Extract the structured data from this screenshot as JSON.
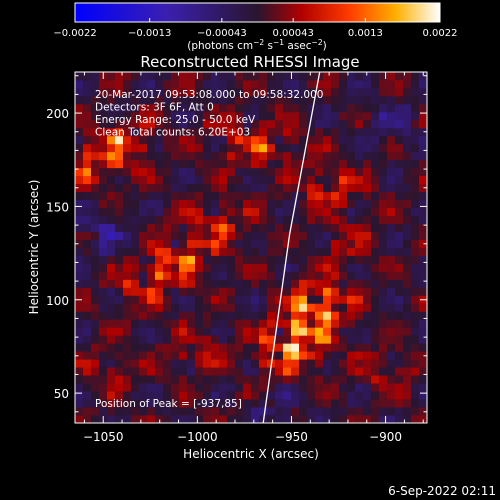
{
  "chart_data": {
    "type": "heatmap",
    "title": "Reconstructed RHESSI Image",
    "xlabel": "Heliocentric X (arcsec)",
    "ylabel": "Heliocentric Y (arcsec)",
    "xlim": [
      -1065,
      -878
    ],
    "ylim": [
      34,
      222
    ],
    "x_ticks": [
      -1050,
      -1000,
      -950,
      -900
    ],
    "x_tick_labels": [
      "−1050",
      "−1000",
      "−950",
      "−900"
    ],
    "y_ticks": [
      50,
      100,
      150,
      200
    ],
    "y_tick_labels": [
      "50",
      "100",
      "150",
      "200"
    ],
    "colorbar": {
      "range": [
        -0.0022,
        0.0022
      ],
      "ticks": [
        -0.0022,
        -0.0013,
        -0.00043,
        0.00043,
        0.0013,
        0.0022
      ],
      "tick_labels": [
        "−0.0022",
        "−0.0013",
        "−0.00043",
        "0.00043",
        "0.0013",
        "0.0022"
      ],
      "unit_parts": [
        "(photons cm",
        "−2",
        " s",
        "−1",
        " asec",
        "−2",
        ")"
      ]
    },
    "info_lines": [
      "20-Mar-2017 09:53:08.000 to 09:58:32.000",
      "Detectors: 3F 6F, Att 0",
      "Energy Range: 25.0 - 50.0 keV",
      "Clean     Total counts: 6.20E+03"
    ],
    "peak_label": "Position of Peak = [-937,85]",
    "peak_position": [
      -937,
      85
    ],
    "blobs": [
      {
        "x": -936,
        "y": 98,
        "value": 0.0022
      },
      {
        "x": -945,
        "y": 80,
        "value": 0.0017
      },
      {
        "x": -955,
        "y": 70,
        "value": 0.0012
      },
      {
        "x": -1010,
        "y": 122,
        "value": 0.0015
      },
      {
        "x": -1028,
        "y": 108,
        "value": 0.0012
      },
      {
        "x": -990,
        "y": 140,
        "value": 0.0011
      },
      {
        "x": -1040,
        "y": 185,
        "value": 0.0013
      },
      {
        "x": -1055,
        "y": 172,
        "value": 0.0011
      },
      {
        "x": -960,
        "y": 182,
        "value": 0.0009
      },
      {
        "x": -930,
        "y": 160,
        "value": 0.0011
      },
      {
        "x": -920,
        "y": 130,
        "value": 0.0007
      },
      {
        "x": -980,
        "y": 185,
        "value": 0.0008
      },
      {
        "x": -1000,
        "y": 72,
        "value": 0.0008
      },
      {
        "x": -1045,
        "y": 62,
        "value": 0.0007
      },
      {
        "x": -900,
        "y": 62,
        "value": 0.0007
      },
      {
        "x": -1050,
        "y": 135,
        "value": -0.0009
      },
      {
        "x": -960,
        "y": 40,
        "value": -0.0006
      },
      {
        "x": -895,
        "y": 195,
        "value": -0.0007
      }
    ],
    "limb_line": [
      [
        -965,
        34
      ],
      [
        -951,
        135
      ],
      [
        -935,
        222
      ]
    ]
  },
  "footer": {
    "timestamp": "6-Sep-2022 02:11"
  }
}
